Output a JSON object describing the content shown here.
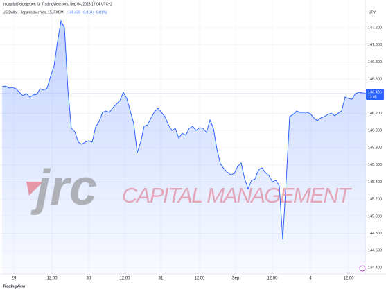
{
  "chart_data": {
    "type": "area",
    "title": "jrccapital freigegeben für TradingView.com, Sep 04, 2023 17:04 UTC+2",
    "subtitle": "US Dollar / Japanischer Yen, 15, FXCM",
    "price_info": "146.436 −0.013 (−0.01%)",
    "currency": "JPY",
    "last_price_label": "146.436",
    "countdown": "13:05",
    "watermark": {
      "logo": "jrc",
      "name": "CAPITAL MANAGEMENT"
    },
    "brand": "TradingView",
    "color": "#2962ff",
    "series": [
      {
        "name": "US Dollar / Japanischer Yen",
        "color": "#2962ff",
        "values": [
          146.512,
          146.52,
          146.496,
          146.504,
          146.488,
          146.447,
          146.407,
          146.431,
          146.391,
          146.415,
          146.423,
          146.488,
          146.472,
          146.496,
          146.633,
          146.755,
          147.038,
          147.281,
          147.2,
          146.472,
          146.026,
          145.986,
          145.865,
          145.84,
          145.865,
          145.881,
          145.865,
          146.043,
          146.107,
          146.213,
          146.229,
          146.213,
          146.269,
          146.31,
          146.35,
          146.447,
          146.374,
          146.229,
          146.083,
          145.743,
          145.865,
          146.051,
          146.067,
          146.148,
          146.221,
          146.261,
          146.213,
          146.164,
          146.067,
          146.002,
          146.026,
          145.913,
          145.97,
          145.945,
          146.026,
          146.051,
          146.002,
          146.034,
          146.026,
          145.978,
          146.123,
          146.026,
          145.784,
          145.614,
          145.557,
          145.516,
          145.484,
          145.5,
          145.581,
          145.622,
          145.436,
          145.322,
          145.419,
          145.436,
          145.541,
          145.565,
          145.508,
          145.476,
          145.403,
          145.419,
          145.355,
          144.731,
          145.419,
          146.164,
          146.188,
          146.229,
          146.213,
          146.213,
          146.213,
          146.196,
          146.148,
          146.115,
          146.148,
          146.164,
          146.188,
          146.204,
          146.172,
          146.204,
          146.229,
          146.391,
          146.374,
          146.366,
          146.431,
          146.447,
          146.439,
          146.436
        ]
      }
    ],
    "xlim": [
      -0.6,
      104.8
    ],
    "xticks": [
      {
        "value": 3.4,
        "label": "29"
      },
      {
        "value": 14.4,
        "label": "12:00"
      },
      {
        "value": 25,
        "label": "30"
      },
      {
        "value": 35.4,
        "label": "12:00"
      },
      {
        "value": 45.8,
        "label": "31"
      },
      {
        "value": 57,
        "label": "12:00"
      },
      {
        "value": 67.4,
        "label": "Sep"
      },
      {
        "value": 78,
        "label": "12:00"
      },
      {
        "value": 89,
        "label": "4"
      },
      {
        "value": 100,
        "label": "12:00"
      }
    ],
    "ylim": [
      144.327,
      147.459
    ],
    "yticks": [
      {
        "value": 144.4,
        "label": "144.400"
      },
      {
        "value": 144.6,
        "label": "144.600"
      },
      {
        "value": 144.8,
        "label": "144.800"
      },
      {
        "value": 145,
        "label": "145.000"
      },
      {
        "value": 145.2,
        "label": "145.200"
      },
      {
        "value": 145.4,
        "label": "145.400"
      },
      {
        "value": 145.6,
        "label": "145.600"
      },
      {
        "value": 145.8,
        "label": "145.800"
      },
      {
        "value": 146,
        "label": "146.000"
      },
      {
        "value": 146.2,
        "label": "146.200"
      },
      {
        "value": 146.4,
        "label": "146.400"
      },
      {
        "value": 146.6,
        "label": "146.600"
      },
      {
        "value": 146.8,
        "label": "146.800"
      },
      {
        "value": 147,
        "label": "147.000"
      },
      {
        "value": 147.2,
        "label": "147.200"
      }
    ],
    "grid": true
  }
}
